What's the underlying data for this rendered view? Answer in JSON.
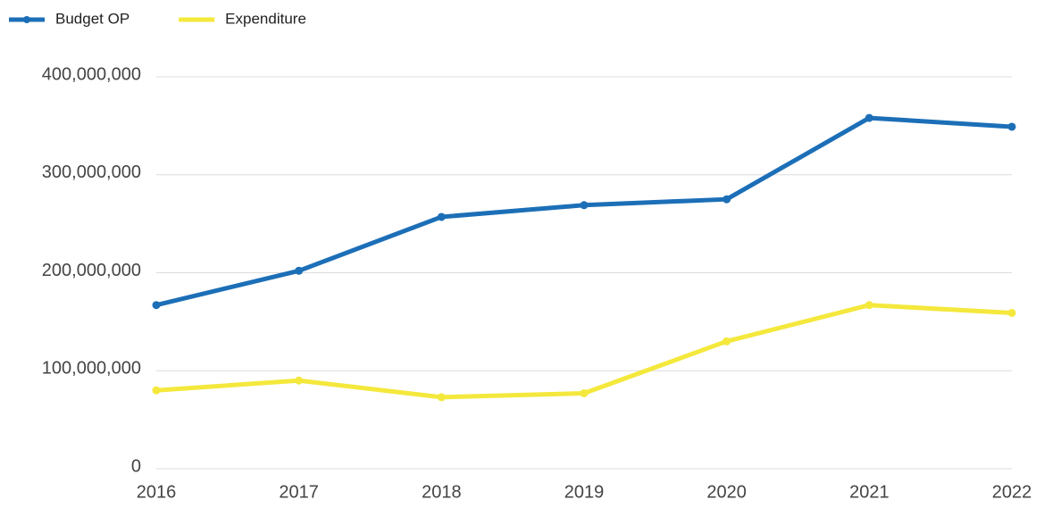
{
  "chart_data": {
    "type": "line",
    "categories": [
      "2016",
      "2017",
      "2018",
      "2019",
      "2020",
      "2021",
      "2022"
    ],
    "series": [
      {
        "name": "Budget OP",
        "color": "#1c6fb7",
        "values": [
          167000000,
          202000000,
          257000000,
          269000000,
          275000000,
          358000000,
          349000000
        ]
      },
      {
        "name": "Expenditure",
        "color": "#f4e83c",
        "values": [
          80000000,
          90000000,
          73000000,
          77000000,
          130000000,
          167000000,
          159000000
        ]
      }
    ],
    "ylim": [
      0,
      400000000
    ],
    "yticks": [
      0,
      {
        "value": 100000000,
        "label": "100,000,000"
      },
      {
        "value": 200000000,
        "label": "200,000,000"
      },
      {
        "value": 300000000,
        "label": "300,000,000"
      },
      {
        "value": 400000000,
        "label": "400,000,000"
      }
    ],
    "grid": true,
    "legend": "top-left"
  }
}
